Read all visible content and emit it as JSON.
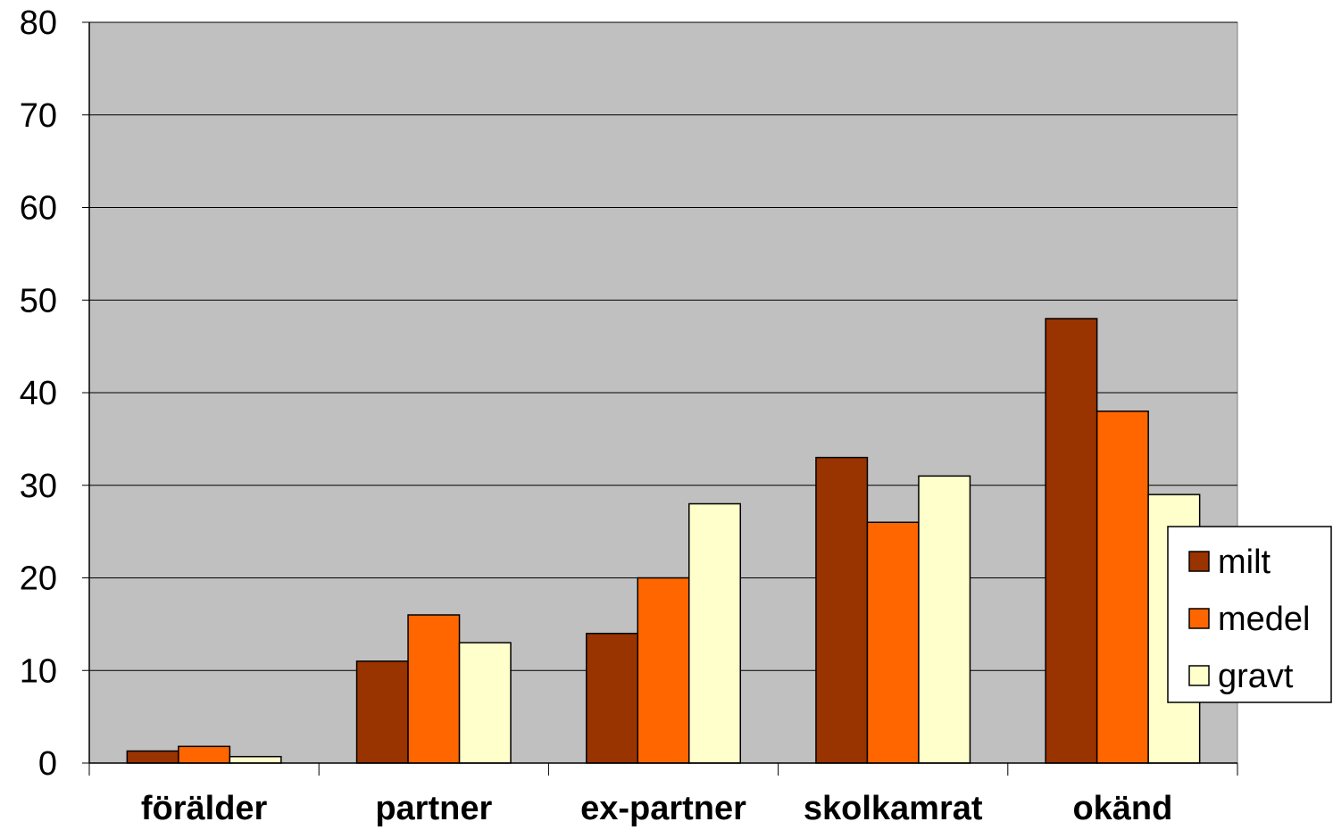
{
  "chart_data": {
    "type": "bar",
    "title": "",
    "xlabel": "",
    "ylabel": "",
    "categories": [
      "förälder",
      "partner",
      "ex-partner",
      "skolkamrat",
      "okänd"
    ],
    "series": [
      {
        "name": "milt",
        "color": "#993300",
        "values": [
          1.3,
          11,
          14,
          33,
          48
        ]
      },
      {
        "name": "medel",
        "color": "#FF6600",
        "values": [
          1.8,
          16,
          20,
          26,
          38
        ]
      },
      {
        "name": "gravt",
        "color": "#FFFFCC",
        "values": [
          0.7,
          13,
          28,
          31,
          29
        ]
      }
    ],
    "ylim": [
      0,
      80
    ],
    "yticks": [
      "0",
      "10",
      "20",
      "30",
      "40",
      "50",
      "60",
      "70",
      "80"
    ],
    "grid": true,
    "plot_background": "#C0C0C0",
    "legend_position": "right"
  }
}
